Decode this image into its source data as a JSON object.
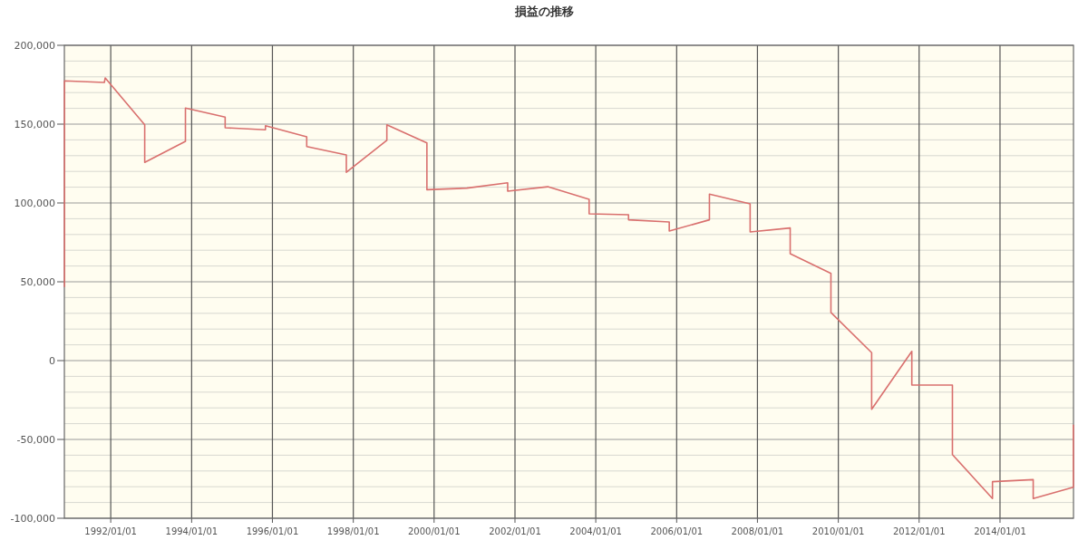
{
  "chart_data": {
    "type": "line",
    "title": "損益の推移",
    "x": [
      "1990-11-09",
      "1990-11-09",
      "1991-11-04",
      "1991-11-12",
      "1992-11-03",
      "1992-11-03",
      "1993-11-06",
      "1993-11-06",
      "1994-10-31",
      "1994-10-31",
      "1995-10-30",
      "1995-10-30",
      "1996-11-06",
      "1996-11-06",
      "1997-10-30",
      "1997-10-30",
      "1998-10-31",
      "1998-10-31",
      "1999-10-28",
      "1999-10-28",
      "2000-10-23",
      "2001-10-27",
      "2001-10-27",
      "2002-10-24",
      "2003-11-02",
      "2003-11-02",
      "2004-10-23",
      "2004-10-23",
      "2005-10-26",
      "2005-10-26",
      "2006-10-24",
      "2006-10-24",
      "2007-10-27",
      "2007-10-27",
      "2008-10-23",
      "2008-10-23",
      "2009-10-26",
      "2009-10-26",
      "2010-10-29",
      "2010-10-29",
      "2011-10-27",
      "2011-10-27",
      "2012-10-28",
      "2012-10-28",
      "2013-10-25",
      "2013-10-25",
      "2014-10-28",
      "2014-10-28",
      "2015-10-26",
      "2015-10-26"
    ],
    "series": [
      {
        "color": "#d9706e",
        "values": [
          47000,
          177400,
          176400,
          179300,
          149600,
          125700,
          139100,
          160200,
          154400,
          147700,
          146400,
          149000,
          141900,
          135800,
          130500,
          119400,
          139700,
          149600,
          138100,
          108400,
          109400,
          112800,
          107500,
          110300,
          102300,
          93100,
          92500,
          89300,
          87900,
          82200,
          89300,
          105600,
          99400,
          81600,
          84100,
          67800,
          55300,
          30500,
          5000,
          -30900,
          5900,
          -15500,
          -15500,
          -59600,
          -87500,
          -76800,
          -75500,
          -87500,
          -80300,
          -41000
        ]
      }
    ],
    "xlim": [
      "1990-11-08",
      "2015-10-27"
    ],
    "ylim": [
      -100000,
      200000
    ],
    "xticks": [
      {
        "value": "1992-01-01",
        "label": "1992/01/01"
      },
      {
        "value": "1994-01-01",
        "label": "1994/01/01"
      },
      {
        "value": "1996-01-01",
        "label": "1996/01/01"
      },
      {
        "value": "1998-01-01",
        "label": "1998/01/01"
      },
      {
        "value": "2000-01-01",
        "label": "2000/01/01"
      },
      {
        "value": "2002-01-01",
        "label": "2002/01/01"
      },
      {
        "value": "2004-01-01",
        "label": "2004/01/01"
      },
      {
        "value": "2006-01-01",
        "label": "2006/01/01"
      },
      {
        "value": "2008-01-01",
        "label": "2008/01/01"
      },
      {
        "value": "2010-01-01",
        "label": "2010/01/01"
      },
      {
        "value": "2012-01-01",
        "label": "2012/01/01"
      },
      {
        "value": "2014-01-01",
        "label": "2014/01/01"
      }
    ],
    "yticks": [
      {
        "value": -100000,
        "label": "-100,000"
      },
      {
        "value": -90000,
        "label": null
      },
      {
        "value": -80000,
        "label": null
      },
      {
        "value": -70000,
        "label": null
      },
      {
        "value": -60000,
        "label": null
      },
      {
        "value": -50000,
        "label": "-50,000"
      },
      {
        "value": -40000,
        "label": null
      },
      {
        "value": -30000,
        "label": null
      },
      {
        "value": -20000,
        "label": null
      },
      {
        "value": -10000,
        "label": null
      },
      {
        "value": 0,
        "label": "0"
      },
      {
        "value": 10000,
        "label": null
      },
      {
        "value": 20000,
        "label": null
      },
      {
        "value": 30000,
        "label": null
      },
      {
        "value": 40000,
        "label": null
      },
      {
        "value": 50000,
        "label": "50,000"
      },
      {
        "value": 60000,
        "label": null
      },
      {
        "value": 70000,
        "label": null
      },
      {
        "value": 80000,
        "label": null
      },
      {
        "value": 90000,
        "label": null
      },
      {
        "value": 100000,
        "label": "100,000"
      },
      {
        "value": 110000,
        "label": null
      },
      {
        "value": 120000,
        "label": null
      },
      {
        "value": 130000,
        "label": null
      },
      {
        "value": 140000,
        "label": null
      },
      {
        "value": 150000,
        "label": "150,000"
      },
      {
        "value": 160000,
        "label": null
      },
      {
        "value": 170000,
        "label": null
      },
      {
        "value": 180000,
        "label": null
      },
      {
        "value": 190000,
        "label": null
      },
      {
        "value": 200000,
        "label": "200,000"
      }
    ],
    "grid": true
  }
}
